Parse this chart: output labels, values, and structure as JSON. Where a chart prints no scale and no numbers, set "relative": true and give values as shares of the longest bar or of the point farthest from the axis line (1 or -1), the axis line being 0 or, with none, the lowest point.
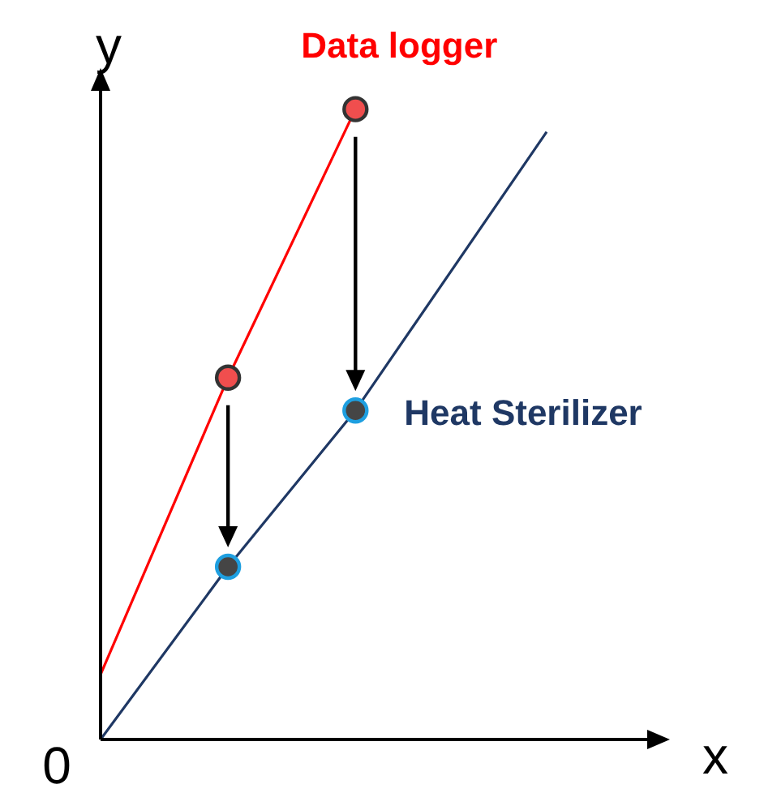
{
  "chart_data": {
    "type": "line",
    "relative": true,
    "xlabel": "x",
    "ylabel": "y",
    "grid": false,
    "legend": false,
    "marker": "circle",
    "annotations": [
      "0"
    ],
    "categories": [
      null,
      null,
      null,
      null,
      null,
      null,
      null,
      null
    ],
    "series": [
      {
        "name": "Data logger",
        "color": "#ff0000",
        "colors": [
          "#f04e4e",
          null,
          "#f04e4e",
          null,
          "#f04e4e",
          null,
          null,
          null
        ],
        "values": [
          0.103,
          null,
          0.574,
          null,
          1,
          null,
          null,
          null
        ]
      },
      {
        "name": "Heat Sterilizer",
        "color": "#1f3864",
        "colors": [
          "#1e9fe0",
          null,
          "#1e9fe0",
          null,
          "#1e9fe0",
          null,
          null,
          "#1e9fe0"
        ],
        "values": [
          0,
          null,
          0.274,
          null,
          0.522,
          null,
          null,
          0.964
        ]
      }
    ]
  }
}
